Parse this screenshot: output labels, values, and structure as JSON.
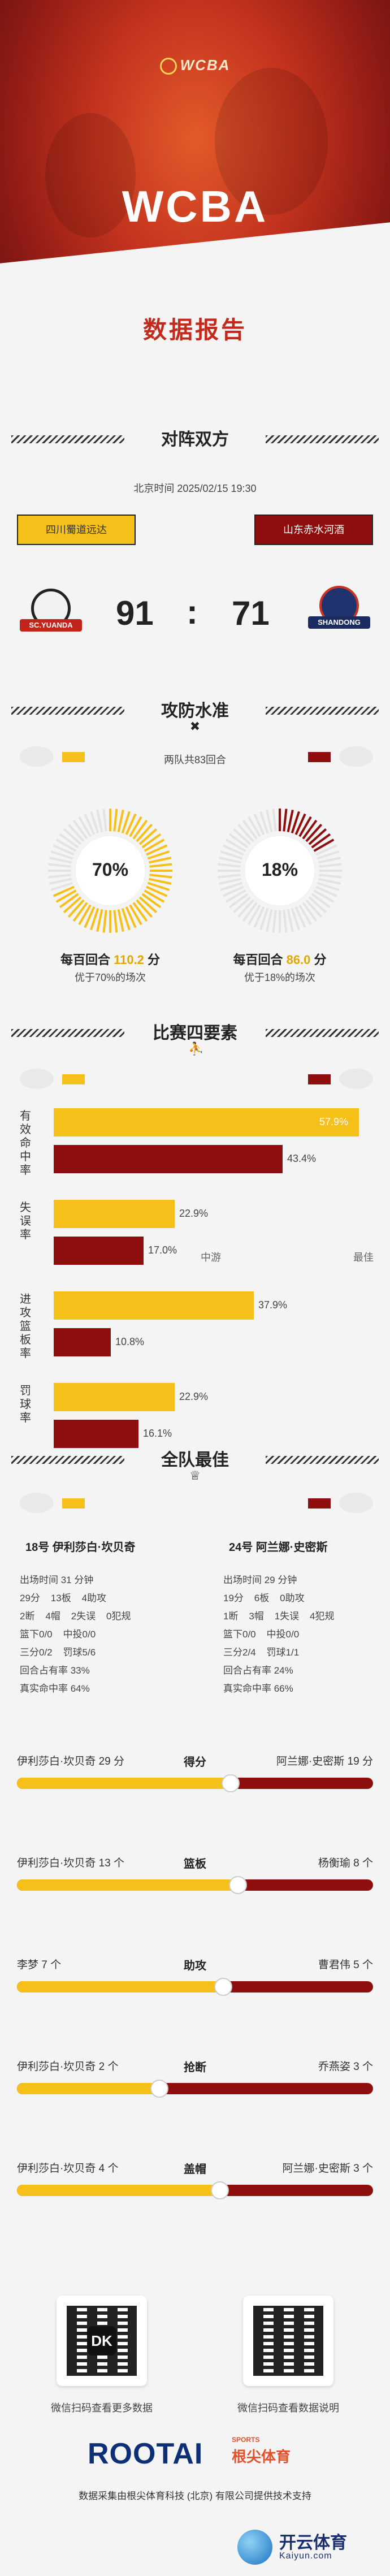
{
  "header": {
    "logo_text": "WCBA",
    "title": "WCBA",
    "subtitle": "数据报告"
  },
  "colors": {
    "home": "#f5c01a",
    "away": "#8e0d0d",
    "accent": "#c22a1c"
  },
  "matchup": {
    "section_title": "对阵双方",
    "datetime": "北京时间 2025/02/15 19:30",
    "home_team": "四川蜀道远达",
    "away_team": "山东赤水河酒",
    "home_logo_text": "SC.YUANDA",
    "away_logo_text": "SHANDONG",
    "home_score": "91",
    "separator": ":",
    "away_score": "71"
  },
  "efficiency": {
    "section_title": "攻防水准",
    "possessions": "两队共83回合",
    "home_ring_value": "70%",
    "away_ring_value": "18%",
    "home_ring_fraction": 0.7,
    "away_ring_fraction": 0.18,
    "home_caption_prefix": "每百回合",
    "home_caption_number": "110.2",
    "home_caption_suffix": "分",
    "away_caption_prefix": "每百回合",
    "away_caption_number": "86.0",
    "away_caption_suffix": "分",
    "home_sub": "优于70%的场次",
    "away_sub": "优于18%的场次"
  },
  "four_factors": {
    "section_title": "比赛四要素",
    "factors": [
      {
        "label": "有效命中率",
        "home": "57.9%",
        "away": "43.4%",
        "home_value": 57.9,
        "away_value": 43.4
      },
      {
        "label": "失误率",
        "home": "22.9%",
        "away": "17.0%",
        "home_value": 22.9,
        "away_value": 17.0
      },
      {
        "label": "进攻篮板率",
        "home": "37.9%",
        "away": "10.8%",
        "home_value": 37.9,
        "away_value": 10.8
      },
      {
        "label": "罚球率",
        "home": "22.9%",
        "away": "16.1%",
        "home_value": 22.9,
        "away_value": 16.1
      }
    ],
    "axis_mid": "中游",
    "axis_best": "最佳"
  },
  "best_players": {
    "section_title": "全队最佳",
    "home_player": {
      "name": "18号 伊利莎白·坎贝奇",
      "stats": [
        "出场时间 31 分钟",
        "29分    13板    4助攻",
        "2断    4帽    2失误    0犯规",
        "篮下0/0    中投0/0",
        "三分0/2    罚球5/6",
        "回合占有率 33%",
        "真实命中率 64%"
      ]
    },
    "away_player": {
      "name": "24号 阿兰娜·史密斯",
      "stats": [
        "出场时间 29 分钟",
        "19分    6板    0助攻",
        "1断    3帽    1失误    4犯规",
        "篮下0/0    中投0/0",
        "三分2/4    罚球1/1",
        "回合占有率 24%",
        "真实命中率 66%"
      ]
    },
    "comparisons": [
      {
        "category": "得分",
        "home_label": "伊利莎白·坎贝奇 29 分",
        "away_label": "阿兰娜·史密斯 19 分",
        "home_share": 0.6
      },
      {
        "category": "篮板",
        "home_label": "伊利莎白·坎贝奇 13 个",
        "away_label": "杨衡瑜 8 个",
        "home_share": 0.62
      },
      {
        "category": "助攻",
        "home_label": "李梦 7 个",
        "away_label": "曹君伟 5 个",
        "home_share": 0.58
      },
      {
        "category": "抢断",
        "home_label": "伊利莎白·坎贝奇 2 个",
        "away_label": "乔燕姿 3 个",
        "home_share": 0.4
      },
      {
        "category": "盖帽",
        "home_label": "伊利莎白·坎贝奇 4 个",
        "away_label": "阿兰娜·史密斯 3 个",
        "home_share": 0.57
      }
    ]
  },
  "footer": {
    "qr_left_caption": "微信扫码查看更多数据",
    "qr_right_caption": "微信扫码查看数据说明",
    "qr_left_mark": "DK",
    "brand": "ROOTAI",
    "brand_sports": "SPORTS",
    "brand_cn": "根尖体育",
    "note": "数据采集由根尖体育科技 (北京) 有限公司提供技术支持",
    "watermark_cn": "开云体育",
    "watermark_en": "Kaiyun.com"
  }
}
